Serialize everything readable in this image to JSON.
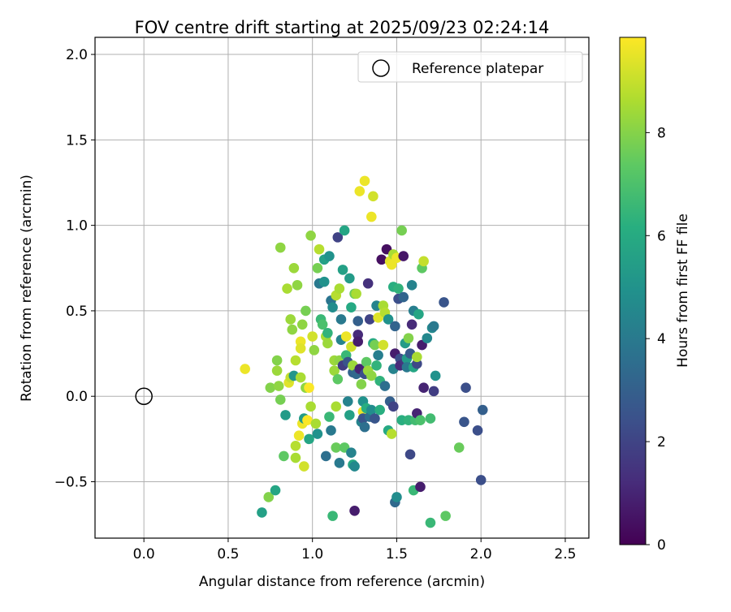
{
  "chart_data": {
    "type": "scatter",
    "title": "FOV centre drift starting at 2025/09/23 02:24:14",
    "xlabel": "Angular distance from reference (arcmin)",
    "ylabel": "Rotation from reference (arcmin)",
    "xlim": [
      -0.29,
      2.64
    ],
    "ylim": [
      -0.83,
      2.1
    ],
    "xticks": [
      0.0,
      0.5,
      1.0,
      1.5,
      2.0,
      2.5
    ],
    "xtick_labels": [
      "0.0",
      "0.5",
      "1.0",
      "1.5",
      "2.0",
      "2.5"
    ],
    "yticks": [
      -0.5,
      0.0,
      0.5,
      1.0,
      1.5,
      2.0
    ],
    "ytick_labels": [
      "−0.5",
      "0.0",
      "0.5",
      "1.0",
      "1.5",
      "2.0"
    ],
    "grid": true,
    "legend": {
      "position": "top-right",
      "entries": [
        "Reference platepar"
      ]
    },
    "reference_point": {
      "x": 0.0,
      "y": 0.0,
      "label": "Reference platepar"
    },
    "colorbar": {
      "label": "Hours from first FF file",
      "colormap": "viridis",
      "range": [
        0,
        9.85
      ],
      "ticks": [
        0,
        2,
        4,
        6,
        8
      ],
      "tick_labels": [
        "0",
        "2",
        "4",
        "6",
        "8"
      ]
    },
    "points": [
      [
        0.6,
        0.16,
        9.6
      ],
      [
        0.7,
        -0.68,
        5.6
      ],
      [
        0.74,
        -0.59,
        8.0
      ],
      [
        0.75,
        0.05,
        8.0
      ],
      [
        0.78,
        -0.55,
        5.8
      ],
      [
        0.79,
        0.15,
        8.4
      ],
      [
        0.79,
        0.21,
        8.0
      ],
      [
        0.8,
        0.06,
        8.2
      ],
      [
        0.81,
        0.87,
        8.2
      ],
      [
        0.81,
        -0.02,
        7.8
      ],
      [
        0.83,
        -0.35,
        7.4
      ],
      [
        0.84,
        -0.11,
        5.4
      ],
      [
        0.85,
        0.63,
        8.6
      ],
      [
        0.86,
        0.08,
        9.4
      ],
      [
        0.87,
        0.45,
        8.4
      ],
      [
        0.87,
        0.11,
        9.0
      ],
      [
        0.88,
        0.39,
        8.2
      ],
      [
        0.89,
        0.75,
        8.4
      ],
      [
        0.89,
        0.12,
        5.2
      ],
      [
        0.9,
        0.21,
        8.8
      ],
      [
        0.9,
        -0.29,
        8.8
      ],
      [
        0.9,
        -0.36,
        8.6
      ],
      [
        0.91,
        0.65,
        8.2
      ],
      [
        0.92,
        -0.23,
        9.6
      ],
      [
        0.93,
        0.32,
        9.6
      ],
      [
        0.93,
        0.28,
        9.4
      ],
      [
        0.93,
        0.11,
        8.6
      ],
      [
        0.94,
        -0.16,
        9.6
      ],
      [
        0.94,
        0.42,
        8.2
      ],
      [
        0.95,
        -0.13,
        5.4
      ],
      [
        0.95,
        -0.41,
        9.2
      ],
      [
        0.96,
        0.05,
        8.2
      ],
      [
        0.96,
        0.5,
        7.8
      ],
      [
        0.97,
        -0.14,
        9.8
      ],
      [
        0.98,
        -0.25,
        5.8
      ],
      [
        0.98,
        0.05,
        9.8
      ],
      [
        0.99,
        0.94,
        8.2
      ],
      [
        0.99,
        -0.06,
        8.6
      ],
      [
        1.0,
        0.35,
        9.2
      ],
      [
        1.01,
        0.27,
        8.2
      ],
      [
        1.02,
        -0.16,
        8.6
      ],
      [
        1.03,
        -0.22,
        5.0
      ],
      [
        1.03,
        0.75,
        7.8
      ],
      [
        1.04,
        0.86,
        8.8
      ],
      [
        1.04,
        0.66,
        4.0
      ],
      [
        1.05,
        0.45,
        6.6
      ],
      [
        1.06,
        0.42,
        7.0
      ],
      [
        1.07,
        0.8,
        5.6
      ],
      [
        1.07,
        0.67,
        5.0
      ],
      [
        1.08,
        0.35,
        8.6
      ],
      [
        1.08,
        -0.35,
        3.6
      ],
      [
        1.09,
        0.37,
        6.4
      ],
      [
        1.09,
        0.31,
        8.4
      ],
      [
        1.1,
        -0.12,
        6.6
      ],
      [
        1.1,
        0.82,
        5.0
      ],
      [
        1.11,
        -0.2,
        4.0
      ],
      [
        1.11,
        0.56,
        3.8
      ],
      [
        1.12,
        0.52,
        4.8
      ],
      [
        1.12,
        -0.7,
        6.6
      ],
      [
        1.13,
        0.21,
        8.4
      ],
      [
        1.13,
        0.15,
        8.4
      ],
      [
        1.14,
        0.59,
        8.8
      ],
      [
        1.14,
        -0.3,
        7.6
      ],
      [
        1.14,
        -0.06,
        8.6
      ],
      [
        1.15,
        0.93,
        2.0
      ],
      [
        1.15,
        0.1,
        7.4
      ],
      [
        1.16,
        -0.39,
        4.0
      ],
      [
        1.16,
        0.63,
        8.6
      ],
      [
        1.16,
        0.21,
        8.2
      ],
      [
        1.17,
        0.45,
        4.0
      ],
      [
        1.17,
        0.33,
        4.4
      ],
      [
        1.18,
        0.74,
        5.6
      ],
      [
        1.18,
        0.18,
        1.8
      ],
      [
        1.19,
        0.97,
        5.8
      ],
      [
        1.19,
        -0.3,
        7.4
      ],
      [
        1.2,
        0.35,
        9.6
      ],
      [
        1.2,
        0.24,
        6.6
      ],
      [
        1.21,
        0.2,
        2.6
      ],
      [
        1.21,
        -0.03,
        4.4
      ],
      [
        1.22,
        0.69,
        5.4
      ],
      [
        1.22,
        -0.11,
        5.6
      ],
      [
        1.23,
        0.52,
        6.0
      ],
      [
        1.23,
        -0.33,
        4.4
      ],
      [
        1.23,
        0.29,
        9.2
      ],
      [
        1.24,
        0.14,
        3.2
      ],
      [
        1.24,
        -0.4,
        6.0
      ],
      [
        1.24,
        0.18,
        8.4
      ],
      [
        1.25,
        -0.67,
        0.8
      ],
      [
        1.25,
        0.6,
        7.6
      ],
      [
        1.25,
        -0.41,
        4.6
      ],
      [
        1.26,
        0.6,
        8.6
      ],
      [
        1.26,
        0.13,
        3.4
      ],
      [
        1.27,
        0.36,
        1.2
      ],
      [
        1.27,
        0.32,
        0.8
      ],
      [
        1.27,
        0.44,
        3.0
      ],
      [
        1.28,
        0.16,
        1.0
      ],
      [
        1.28,
        1.2,
        9.6
      ],
      [
        1.29,
        -0.15,
        4.4
      ],
      [
        1.29,
        0.07,
        8.0
      ],
      [
        1.3,
        -0.03,
        5.0
      ],
      [
        1.3,
        -0.09,
        9.6
      ],
      [
        1.3,
        -0.13,
        2.6
      ],
      [
        1.31,
        1.26,
        9.6
      ],
      [
        1.31,
        -0.18,
        3.6
      ],
      [
        1.31,
        0.13,
        2.4
      ],
      [
        1.32,
        0.2,
        7.4
      ],
      [
        1.32,
        -0.07,
        6.2
      ],
      [
        1.33,
        0.15,
        8.4
      ],
      [
        1.33,
        0.66,
        1.4
      ],
      [
        1.34,
        0.45,
        2.0
      ],
      [
        1.34,
        -0.12,
        3.6
      ],
      [
        1.35,
        -0.08,
        4.8
      ],
      [
        1.35,
        1.05,
        9.6
      ],
      [
        1.35,
        0.12,
        8.2
      ],
      [
        1.36,
        1.17,
        9.2
      ],
      [
        1.36,
        0.31,
        6.0
      ],
      [
        1.37,
        0.3,
        7.8
      ],
      [
        1.37,
        -0.13,
        2.6
      ],
      [
        1.38,
        0.53,
        4.4
      ],
      [
        1.38,
        0.18,
        6.4
      ],
      [
        1.39,
        0.24,
        4.2
      ],
      [
        1.39,
        0.46,
        9.4
      ],
      [
        1.4,
        -0.08,
        6.2
      ],
      [
        1.4,
        0.09,
        6.4
      ],
      [
        1.41,
        0.8,
        0.4
      ],
      [
        1.42,
        0.53,
        8.6
      ],
      [
        1.42,
        0.3,
        9.2
      ],
      [
        1.43,
        0.06,
        3.6
      ],
      [
        1.43,
        0.49,
        8.8
      ],
      [
        1.44,
        0.86,
        0.4
      ],
      [
        1.45,
        -0.2,
        6.0
      ],
      [
        1.45,
        0.45,
        5.0
      ],
      [
        1.46,
        -0.03,
        3.0
      ],
      [
        1.46,
        0.79,
        9.4
      ],
      [
        1.47,
        -0.22,
        8.8
      ],
      [
        1.47,
        0.77,
        9.6
      ],
      [
        1.48,
        0.64,
        6.2
      ],
      [
        1.48,
        -0.06,
        2.0
      ],
      [
        1.48,
        0.83,
        8.6
      ],
      [
        1.48,
        0.16,
        4.4
      ],
      [
        1.49,
        -0.62,
        3.4
      ],
      [
        1.49,
        0.41,
        3.2
      ],
      [
        1.49,
        0.25,
        0.8
      ],
      [
        1.5,
        -0.59,
        4.8
      ],
      [
        1.5,
        0.81,
        9.6
      ],
      [
        1.51,
        0.57,
        2.4
      ],
      [
        1.51,
        0.63,
        6.4
      ],
      [
        1.52,
        0.22,
        2.4
      ],
      [
        1.52,
        0.18,
        1.2
      ],
      [
        1.53,
        0.97,
        7.8
      ],
      [
        1.53,
        -0.14,
        6.2
      ],
      [
        1.54,
        0.58,
        3.2
      ],
      [
        1.54,
        0.82,
        0.6
      ],
      [
        1.55,
        0.2,
        1.6
      ],
      [
        1.55,
        0.31,
        5.4
      ],
      [
        1.56,
        0.22,
        5.4
      ],
      [
        1.56,
        0.17,
        4.0
      ],
      [
        1.57,
        -0.14,
        6.4
      ],
      [
        1.57,
        0.34,
        8.0
      ],
      [
        1.58,
        -0.34,
        2.2
      ],
      [
        1.58,
        0.25,
        2.8
      ],
      [
        1.59,
        0.42,
        1.2
      ],
      [
        1.59,
        0.65,
        4.4
      ],
      [
        1.6,
        0.17,
        5.8
      ],
      [
        1.6,
        -0.55,
        6.6
      ],
      [
        1.6,
        0.5,
        4.2
      ],
      [
        1.61,
        -0.14,
        6.8
      ],
      [
        1.62,
        0.19,
        2.2
      ],
      [
        1.62,
        0.23,
        8.6
      ],
      [
        1.62,
        -0.1,
        1.0
      ],
      [
        1.63,
        0.48,
        5.8
      ],
      [
        1.64,
        -0.14,
        7.0
      ],
      [
        1.64,
        -0.53,
        0.8
      ],
      [
        1.65,
        0.3,
        0.8
      ],
      [
        1.65,
        0.75,
        7.4
      ],
      [
        1.66,
        0.79,
        9.0
      ],
      [
        1.66,
        0.05,
        1.0
      ],
      [
        1.68,
        0.34,
        4.6
      ],
      [
        1.7,
        -0.74,
        6.6
      ],
      [
        1.7,
        -0.13,
        6.8
      ],
      [
        1.71,
        0.4,
        4.6
      ],
      [
        1.72,
        0.03,
        1.8
      ],
      [
        1.72,
        0.41,
        4.0
      ],
      [
        1.73,
        0.12,
        5.0
      ],
      [
        1.78,
        0.55,
        2.6
      ],
      [
        1.79,
        -0.7,
        7.4
      ],
      [
        1.87,
        -0.3,
        7.6
      ],
      [
        1.9,
        -0.15,
        2.6
      ],
      [
        1.91,
        0.05,
        2.4
      ],
      [
        1.98,
        -0.2,
        2.4
      ],
      [
        2.0,
        -0.49,
        2.4
      ],
      [
        2.01,
        -0.08,
        3.0
      ]
    ]
  }
}
